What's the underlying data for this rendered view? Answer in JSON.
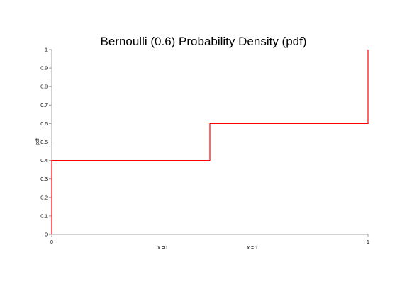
{
  "chart_data": {
    "type": "line",
    "title": "Bernoulli (0.6) Probability Density (pdf)",
    "xlabel": "",
    "ylabel": "pdf",
    "xlim": [
      0,
      1
    ],
    "ylim": [
      0,
      1
    ],
    "x_ticks": [
      "0",
      "1"
    ],
    "x_tick_values": [
      0,
      1
    ],
    "x_annotations": [
      {
        "text": "x =0",
        "x": 0.35
      },
      {
        "text": "x = 1",
        "x": 0.635
      }
    ],
    "y_ticks": [
      "0",
      "0.1",
      "0.2",
      "0.3",
      "0.4",
      "0.5",
      "0.6",
      "0.7",
      "0.8",
      "0.9",
      "1"
    ],
    "y_tick_values": [
      0,
      0.1,
      0.2,
      0.3,
      0.4,
      0.5,
      0.6,
      0.7,
      0.8,
      0.9,
      1
    ],
    "grid": false,
    "series": [
      {
        "color": "#ff0000",
        "x": [
          0,
          0,
          0.5,
          0.5,
          1,
          1
        ],
        "y": [
          0,
          0.4,
          0.4,
          0.6,
          0.6,
          1
        ]
      }
    ]
  }
}
